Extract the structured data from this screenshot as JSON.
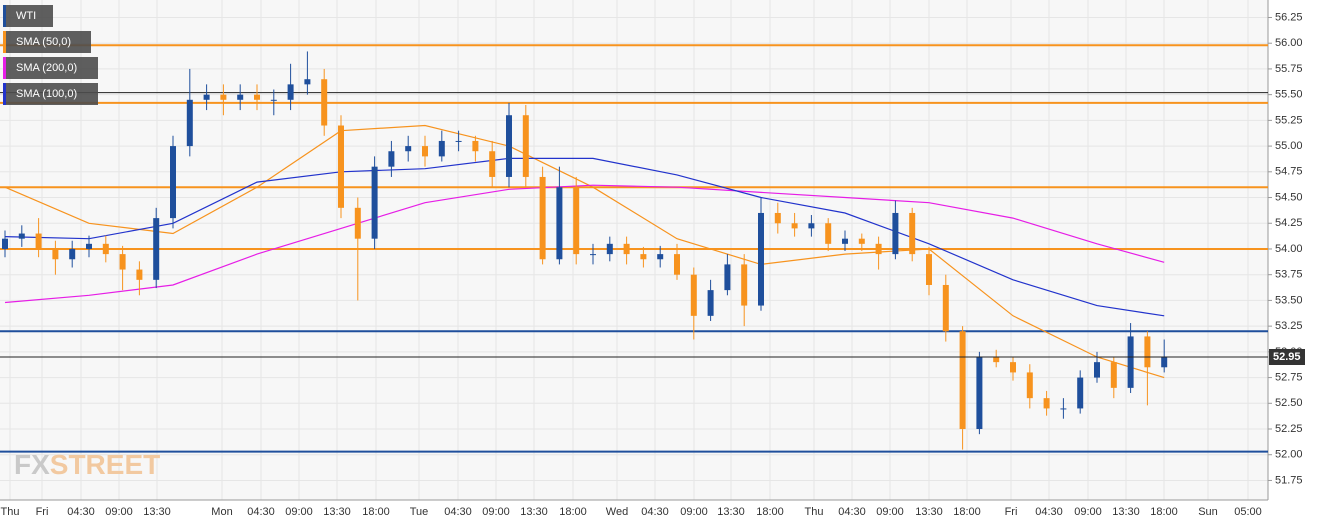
{
  "chart_data": {
    "type": "candlestick",
    "ylim": [
      51.56,
      56.42
    ],
    "yticks": [
      56.25,
      {
        "value": 56.0,
        "label": "56.00"
      },
      55.75,
      {
        "value": 55.5,
        "label": "55.50"
      },
      55.25,
      {
        "value": 55.0,
        "label": "55.00"
      },
      54.75,
      {
        "value": 54.5,
        "label": "54.50"
      },
      54.25,
      {
        "value": 54.0,
        "label": "54.00"
      },
      53.75,
      {
        "value": 53.5,
        "label": "53.50"
      },
      53.25,
      {
        "value": 53.0,
        "label": "53.00"
      },
      52.75,
      {
        "value": 52.5,
        "label": "52.50"
      },
      52.25,
      {
        "value": 52.0,
        "label": "52.00"
      },
      51.75
    ],
    "x_labels": [
      "Thu",
      "Fri",
      "04:30",
      "09:00",
      "13:30",
      "Mon",
      "04:30",
      "09:00",
      "13:30",
      "18:00",
      "Tue",
      "04:30",
      "09:00",
      "13:30",
      "18:00",
      "Wed",
      "04:30",
      "09:00",
      "13:30",
      "18:00",
      "Thu",
      "04:30",
      "09:00",
      "13:30",
      "18:00",
      "Fri",
      "04:30",
      "09:00",
      "13:30",
      "18:00",
      "Sun",
      "05:00"
    ],
    "grid": true,
    "watermark": [
      "FX",
      "STREET"
    ],
    "candles": {
      "name": "WTI",
      "up_color": "#1f4f9c",
      "down_color": "#f7931e",
      "open": [
        54.0,
        54.1,
        54.15,
        54.0,
        53.9,
        54.0,
        54.05,
        53.95,
        53.8,
        53.7,
        54.3,
        55.0,
        55.45,
        55.5,
        55.45,
        55.5,
        55.45,
        55.45,
        55.6,
        55.65,
        55.2,
        54.4,
        54.1,
        54.8,
        54.95,
        55.0,
        54.9,
        55.05,
        55.05,
        54.95,
        54.7,
        55.3,
        54.7,
        53.9,
        54.6,
        53.95,
        53.95,
        54.05,
        53.95,
        53.9,
        53.95,
        53.75,
        53.35,
        53.6,
        53.85,
        53.45,
        54.35,
        54.25,
        54.2,
        54.25,
        54.05,
        54.1,
        54.05,
        53.95,
        54.35,
        53.95,
        53.65,
        53.2,
        52.25,
        52.95,
        52.9,
        52.8,
        52.55,
        52.45,
        52.45,
        52.75,
        52.9,
        52.65,
        53.15,
        52.85
      ],
      "high": [
        54.18,
        54.23,
        54.3,
        54.08,
        54.08,
        54.13,
        54.13,
        54.03,
        53.88,
        54.4,
        55.1,
        55.75,
        55.6,
        55.6,
        55.6,
        55.6,
        55.55,
        55.8,
        55.92,
        55.75,
        55.3,
        54.5,
        54.9,
        55.05,
        55.1,
        55.1,
        55.15,
        55.15,
        55.1,
        55.05,
        55.42,
        55.4,
        54.8,
        54.8,
        54.7,
        54.05,
        54.12,
        54.12,
        54.02,
        54.03,
        54.05,
        53.82,
        53.7,
        53.95,
        53.95,
        54.5,
        54.45,
        54.35,
        54.33,
        54.3,
        54.18,
        54.15,
        54.12,
        54.47,
        54.4,
        54.02,
        53.75,
        53.25,
        53.0,
        53.02,
        52.95,
        52.88,
        52.62,
        52.55,
        52.82,
        53.0,
        52.95,
        53.28,
        53.2,
        53.12
      ],
      "low": [
        53.92,
        54.02,
        53.92,
        53.75,
        53.82,
        53.92,
        53.87,
        53.6,
        53.55,
        53.62,
        54.2,
        54.9,
        55.35,
        55.3,
        55.35,
        55.35,
        55.3,
        55.35,
        55.5,
        55.1,
        54.3,
        53.5,
        54.0,
        54.7,
        54.85,
        54.8,
        54.85,
        54.95,
        54.85,
        54.6,
        54.6,
        54.6,
        53.85,
        53.85,
        53.85,
        53.85,
        53.88,
        53.85,
        53.82,
        53.82,
        53.7,
        53.12,
        53.3,
        53.55,
        53.25,
        53.4,
        54.15,
        54.12,
        54.12,
        53.98,
        53.98,
        53.98,
        53.8,
        53.9,
        53.88,
        53.55,
        53.1,
        52.05,
        52.2,
        52.85,
        52.72,
        52.45,
        52.38,
        52.35,
        52.4,
        52.7,
        52.55,
        52.6,
        52.48,
        52.8
      ],
      "close": [
        54.1,
        54.15,
        54.0,
        53.9,
        54.0,
        54.05,
        53.95,
        53.8,
        53.7,
        54.3,
        55.0,
        55.45,
        55.5,
        55.45,
        55.5,
        55.45,
        55.45,
        55.6,
        55.65,
        55.2,
        54.4,
        54.1,
        54.8,
        54.95,
        55.0,
        54.9,
        55.05,
        55.05,
        54.95,
        54.7,
        55.3,
        54.7,
        53.9,
        54.6,
        53.95,
        53.95,
        54.05,
        53.95,
        53.9,
        53.95,
        53.75,
        53.35,
        53.6,
        53.85,
        53.45,
        54.35,
        54.25,
        54.2,
        54.25,
        54.05,
        54.1,
        54.05,
        53.95,
        54.35,
        53.95,
        53.65,
        53.2,
        52.25,
        52.95,
        52.9,
        52.8,
        52.55,
        52.45,
        52.45,
        52.75,
        52.9,
        52.65,
        53.15,
        52.85,
        52.95
      ]
    },
    "series": [
      {
        "name": "SMA (50,0)",
        "color": "#f7931e",
        "x": [
          0,
          5,
          10,
          15,
          20,
          25,
          30,
          35,
          40,
          45,
          50,
          55,
          60,
          65,
          69
        ],
        "values": [
          54.6,
          54.25,
          54.15,
          54.6,
          55.15,
          55.2,
          55.0,
          54.6,
          54.1,
          53.85,
          53.95,
          54.0,
          53.35,
          52.95,
          52.75
        ]
      },
      {
        "name": "SMA (200,0)",
        "color": "#e61ee6",
        "x": [
          0,
          5,
          10,
          15,
          20,
          25,
          30,
          35,
          40,
          45,
          50,
          55,
          60,
          65,
          69
        ],
        "values": [
          53.48,
          53.55,
          53.65,
          53.95,
          54.2,
          54.45,
          54.58,
          54.62,
          54.6,
          54.55,
          54.5,
          54.45,
          54.3,
          54.05,
          53.87
        ]
      },
      {
        "name": "SMA (100,0)",
        "color": "#2233cc",
        "x": [
          0,
          5,
          10,
          15,
          20,
          25,
          30,
          35,
          40,
          45,
          50,
          55,
          60,
          65,
          69
        ],
        "values": [
          54.12,
          54.1,
          54.25,
          54.65,
          54.75,
          54.78,
          54.88,
          54.88,
          54.72,
          54.5,
          54.35,
          54.05,
          53.7,
          53.45,
          53.35
        ]
      }
    ],
    "levels": [
      {
        "value": 55.98,
        "color": "#f7931e"
      },
      {
        "value": 55.52,
        "color": "#222222"
      },
      {
        "value": 55.42,
        "color": "#f7931e"
      },
      {
        "value": 54.6,
        "color": "#f7931e"
      },
      {
        "value": 54.0,
        "color": "#f7931e"
      },
      {
        "value": 53.2,
        "color": "#1f4f9c"
      },
      {
        "value": 52.03,
        "color": "#1f4f9c"
      }
    ]
  }
}
